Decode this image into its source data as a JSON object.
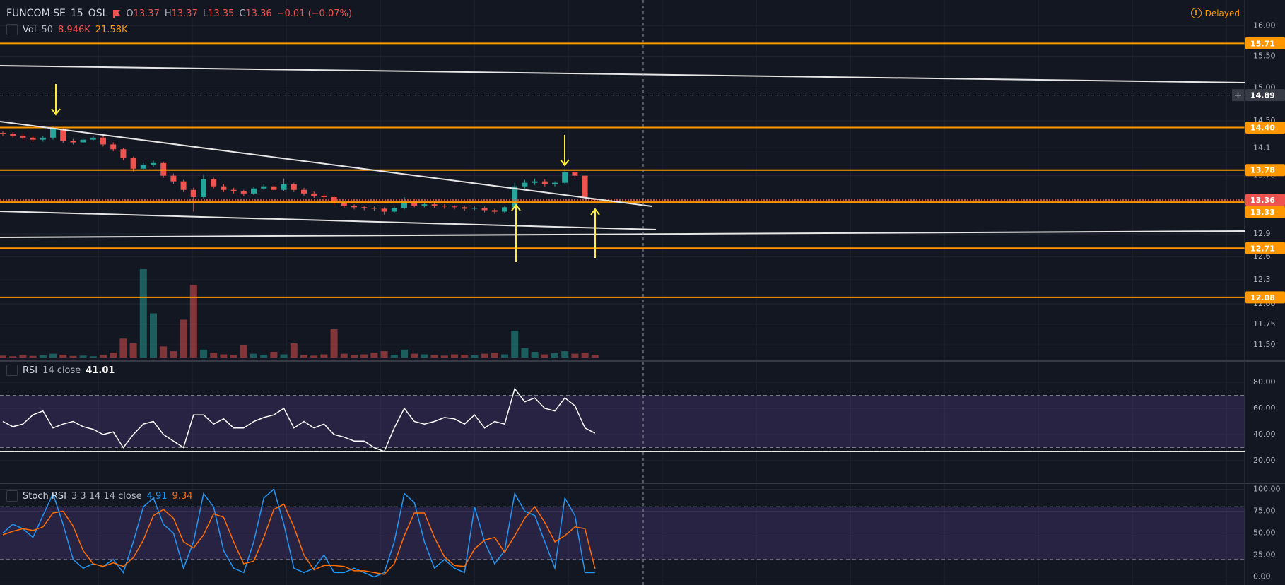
{
  "header": {
    "symbol": "FUNCOM SE",
    "interval": "15",
    "exchange": "OSL",
    "ohlc_labels": [
      "O",
      "H",
      "L",
      "C"
    ],
    "change": "−0.01 (−0.07%)",
    "status": "Delayed"
  },
  "chart_data": [
    {
      "type": "candlestick",
      "log": true,
      "grid": true,
      "up_color": "#26a69a",
      "down_color": "#ef5350",
      "ylim": [
        11.31,
        16.43
      ],
      "yticks": [
        {
          "value": 16,
          "label": "16.00"
        },
        {
          "value": 15.5,
          "label": "15.50"
        },
        {
          "value": 15,
          "label": "15.00"
        },
        {
          "value": 14.5,
          "label": "14.50"
        },
        14.1,
        {
          "value": 13.7,
          "label": "13.70"
        },
        12.9,
        12.6,
        12.3,
        {
          "value": 12,
          "label": "12.00"
        },
        11.75,
        {
          "value": 11.5,
          "label": "11.50"
        }
      ],
      "open": [
        14.32,
        14.3,
        14.28,
        14.25,
        14.22,
        14.25,
        14.38,
        14.2,
        14.18,
        14.22,
        14.25,
        14.15,
        14.08,
        13.95,
        13.8,
        13.85,
        13.88,
        13.7,
        13.62,
        13.5,
        13.4,
        13.65,
        13.55,
        13.5,
        13.48,
        13.45,
        13.52,
        13.55,
        13.5,
        13.58,
        13.5,
        13.45,
        13.42,
        13.4,
        13.32,
        13.28,
        13.26,
        13.25,
        13.24,
        13.2,
        13.25,
        13.35,
        13.28,
        13.3,
        13.28,
        13.27,
        13.26,
        13.24,
        13.25,
        13.22,
        13.2,
        13.26,
        13.55,
        13.6,
        13.62,
        13.58,
        13.6,
        13.75,
        13.7,
        13.37
      ],
      "high": [
        14.34,
        14.33,
        14.31,
        14.28,
        14.28,
        14.42,
        14.4,
        14.23,
        14.24,
        14.28,
        14.27,
        14.18,
        14.1,
        13.97,
        13.88,
        13.92,
        13.9,
        13.73,
        13.64,
        13.53,
        13.72,
        13.67,
        13.58,
        13.53,
        13.5,
        13.54,
        13.58,
        13.58,
        13.66,
        13.6,
        13.53,
        13.48,
        13.44,
        13.42,
        13.34,
        13.3,
        13.28,
        13.27,
        13.26,
        13.27,
        13.4,
        13.37,
        13.33,
        13.32,
        13.3,
        13.29,
        13.28,
        13.27,
        13.27,
        13.24,
        13.28,
        13.6,
        13.64,
        13.66,
        13.65,
        13.62,
        13.8,
        13.77,
        13.72,
        13.37
      ],
      "low": [
        14.27,
        14.25,
        14.22,
        14.19,
        14.19,
        14.22,
        14.17,
        14.15,
        14.16,
        14.2,
        14.12,
        14.05,
        13.92,
        13.76,
        13.78,
        13.82,
        13.67,
        13.58,
        13.47,
        13.2,
        13.38,
        13.52,
        13.47,
        13.45,
        13.42,
        13.43,
        13.5,
        13.48,
        13.48,
        13.47,
        13.42,
        13.39,
        13.37,
        13.29,
        13.25,
        13.23,
        13.22,
        13.21,
        13.16,
        13.18,
        13.23,
        13.26,
        13.26,
        13.25,
        13.24,
        13.23,
        13.21,
        13.22,
        13.19,
        13.17,
        13.18,
        13.24,
        13.52,
        13.57,
        13.55,
        13.55,
        13.58,
        13.66,
        13.38,
        13.35
      ],
      "close": [
        14.3,
        14.28,
        14.25,
        14.22,
        14.25,
        14.38,
        14.2,
        14.18,
        14.22,
        14.25,
        14.15,
        14.08,
        13.95,
        13.8,
        13.85,
        13.88,
        13.7,
        13.62,
        13.5,
        13.4,
        13.65,
        13.55,
        13.5,
        13.48,
        13.45,
        13.52,
        13.55,
        13.5,
        13.58,
        13.5,
        13.45,
        13.42,
        13.4,
        13.32,
        13.28,
        13.26,
        13.25,
        13.24,
        13.2,
        13.25,
        13.35,
        13.28,
        13.3,
        13.28,
        13.27,
        13.26,
        13.24,
        13.25,
        13.22,
        13.2,
        13.26,
        13.55,
        13.6,
        13.62,
        13.58,
        13.6,
        13.75,
        13.7,
        13.4,
        13.36
      ],
      "volume": {
        "name": "Vol",
        "params": "50",
        "legend_values": [
          "8.946K",
          "21.58K"
        ],
        "values": [
          6,
          4,
          8,
          5,
          7,
          12,
          9,
          5,
          6,
          4,
          8,
          15,
          60,
          45,
          280,
          140,
          35,
          20,
          120,
          230,
          25,
          15,
          10,
          8,
          40,
          12,
          9,
          18,
          10,
          45,
          8,
          6,
          10,
          90,
          12,
          8,
          10,
          15,
          20,
          9,
          25,
          12,
          10,
          8,
          6,
          10,
          9,
          7,
          12,
          15,
          10,
          85,
          30,
          18,
          10,
          14,
          20,
          12,
          15,
          8.946
        ]
      },
      "levels": [
        15.71,
        {
          "value": 14.4,
          "label": "14.40"
        },
        13.78,
        13.33,
        12.71,
        12.08
      ],
      "level_color": "#ff9800",
      "last_price": 13.36,
      "last_color": "#ef5350",
      "crosshair": 14.89
    },
    {
      "type": "line",
      "name": "RSI",
      "params": "14 close",
      "grid": true,
      "ylim": [
        2.7,
        96.2
      ],
      "yticks": [
        {
          "value": 80,
          "label": "80.00"
        },
        {
          "value": 60,
          "label": "60.00"
        },
        {
          "value": 40,
          "label": "40.00"
        },
        {
          "value": 20,
          "label": "20.00"
        }
      ],
      "bands": [
        30,
        70
      ],
      "band_color": "#7e57c2",
      "series": [
        {
          "color": "#ffffff",
          "values": [
            50,
            46,
            48,
            55,
            58,
            45,
            48,
            50,
            46,
            44,
            40,
            42,
            30,
            40,
            48,
            50,
            40,
            35,
            30,
            55,
            55,
            48,
            52,
            45,
            45,
            50,
            53,
            55,
            60,
            45,
            50,
            45,
            48,
            40,
            38,
            35,
            35,
            30,
            27,
            45,
            60,
            50,
            48,
            50,
            53,
            52,
            48,
            55,
            45,
            50,
            48,
            75,
            65,
            68,
            60,
            58,
            68,
            62,
            45,
            41.01
          ]
        }
      ]
    },
    {
      "type": "line",
      "name": "Stoch RSI",
      "params": "3 3 14 14 close",
      "grid": true,
      "ylim": [
        -9.2,
        106.8
      ],
      "yticks": [
        {
          "value": 100,
          "label": "100.00"
        },
        {
          "value": 75,
          "label": "75.00"
        },
        {
          "value": 50,
          "label": "50.00"
        },
        {
          "value": 25,
          "label": "25.00"
        },
        {
          "value": 0,
          "label": "0.00"
        }
      ],
      "bands": [
        20,
        80
      ],
      "band_color": "#7e57c2",
      "series": [
        {
          "color": "#2196f3",
          "values": [
            50,
            60,
            55,
            45,
            70,
            95,
            60,
            20,
            10,
            15,
            12,
            20,
            5,
            40,
            80,
            90,
            60,
            50,
            10,
            40,
            95,
            80,
            30,
            10,
            5,
            40,
            90,
            100,
            60,
            10,
            5,
            10,
            25,
            5,
            5,
            10,
            5,
            0,
            5,
            40,
            95,
            85,
            40,
            10,
            20,
            10,
            5,
            80,
            40,
            15,
            30,
            95,
            75,
            70,
            40,
            10,
            90,
            70,
            5,
            4.91
          ]
        },
        {
          "color": "#ff6d00",
          "values": [
            48,
            52,
            55,
            53,
            57,
            73,
            75,
            58,
            30,
            15,
            12,
            16,
            12,
            22,
            42,
            70,
            77,
            67,
            40,
            33,
            48,
            72,
            68,
            40,
            15,
            18,
            45,
            77,
            83,
            57,
            25,
            8,
            13,
            13,
            12,
            7,
            7,
            5,
            3,
            15,
            47,
            73,
            73,
            45,
            23,
            13,
            12,
            32,
            42,
            45,
            28,
            47,
            67,
            80,
            62,
            40,
            47,
            57,
            55,
            9.34
          ]
        }
      ]
    }
  ]
}
